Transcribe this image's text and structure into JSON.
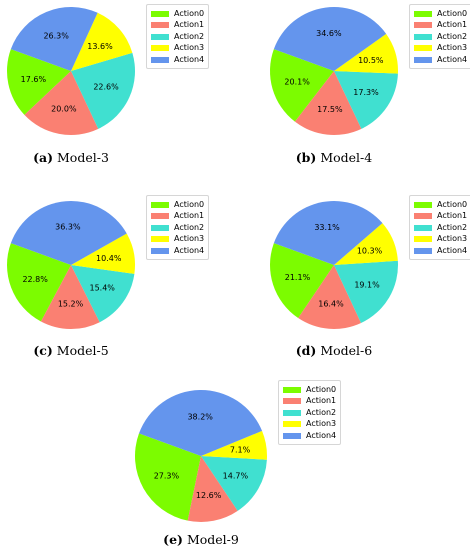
{
  "colors": {
    "Action0": "#7cfc00",
    "Action1": "#fa8072",
    "Action2": "#40e0d0",
    "Action3": "#ffff00",
    "Action4": "#6495ed"
  },
  "chart_data": [
    {
      "type": "pie",
      "caption_tag": "(a)",
      "caption_text": "Model-3",
      "legend": [
        "Action0",
        "Action1",
        "Action2",
        "Action3",
        "Action4"
      ],
      "slices": [
        {
          "label": "Action0",
          "value": 17.6,
          "text": "17.6%"
        },
        {
          "label": "Action1",
          "value": 20.0,
          "text": "20.0%"
        },
        {
          "label": "Action2",
          "value": 22.6,
          "text": "22.6%"
        },
        {
          "label": "Action3",
          "value": 13.6,
          "text": "13.6%"
        },
        {
          "label": "Action4",
          "value": 26.3,
          "text": "26.3%"
        }
      ]
    },
    {
      "type": "pie",
      "caption_tag": "(b)",
      "caption_text": "Model-4",
      "legend": [
        "Action0",
        "Action1",
        "Action2",
        "Action3",
        "Action4"
      ],
      "slices": [
        {
          "label": "Action0",
          "value": 20.1,
          "text": "20.1%"
        },
        {
          "label": "Action1",
          "value": 17.5,
          "text": "17.5%"
        },
        {
          "label": "Action2",
          "value": 17.3,
          "text": "17.3%"
        },
        {
          "label": "Action3",
          "value": 10.5,
          "text": "10.5%"
        },
        {
          "label": "Action4",
          "value": 34.6,
          "text": "34.6%"
        }
      ]
    },
    {
      "type": "pie",
      "caption_tag": "(c)",
      "caption_text": "Model-5",
      "legend": [
        "Action0",
        "Action1",
        "Action2",
        "Action3",
        "Action4"
      ],
      "slices": [
        {
          "label": "Action0",
          "value": 22.8,
          "text": "22.8%"
        },
        {
          "label": "Action1",
          "value": 15.2,
          "text": "15.2%"
        },
        {
          "label": "Action2",
          "value": 15.4,
          "text": "15.4%"
        },
        {
          "label": "Action3",
          "value": 10.4,
          "text": "10.4%"
        },
        {
          "label": "Action4",
          "value": 36.3,
          "text": "36.3%"
        }
      ]
    },
    {
      "type": "pie",
      "caption_tag": "(d)",
      "caption_text": "Model-6",
      "legend": [
        "Action0",
        "Action1",
        "Action2",
        "Action3",
        "Action4"
      ],
      "slices": [
        {
          "label": "Action0",
          "value": 21.1,
          "text": "21.1%"
        },
        {
          "label": "Action1",
          "value": 16.4,
          "text": "16.4%"
        },
        {
          "label": "Action2",
          "value": 19.1,
          "text": "19.1%"
        },
        {
          "label": "Action3",
          "value": 10.3,
          "text": "10.3%"
        },
        {
          "label": "Action4",
          "value": 33.1,
          "text": "33.1%"
        }
      ]
    },
    {
      "type": "pie",
      "caption_tag": "(e)",
      "caption_text": "Model-9",
      "legend": [
        "Action0",
        "Action1",
        "Action2",
        "Action3",
        "Action4"
      ],
      "slices": [
        {
          "label": "Action0",
          "value": 27.3,
          "text": "27.3%"
        },
        {
          "label": "Action1",
          "value": 12.6,
          "text": "12.6%"
        },
        {
          "label": "Action2",
          "value": 14.7,
          "text": "14.7%"
        },
        {
          "label": "Action3",
          "value": 7.1,
          "text": "7.1%"
        },
        {
          "label": "Action4",
          "value": 38.2,
          "text": "38.2%"
        }
      ]
    }
  ]
}
